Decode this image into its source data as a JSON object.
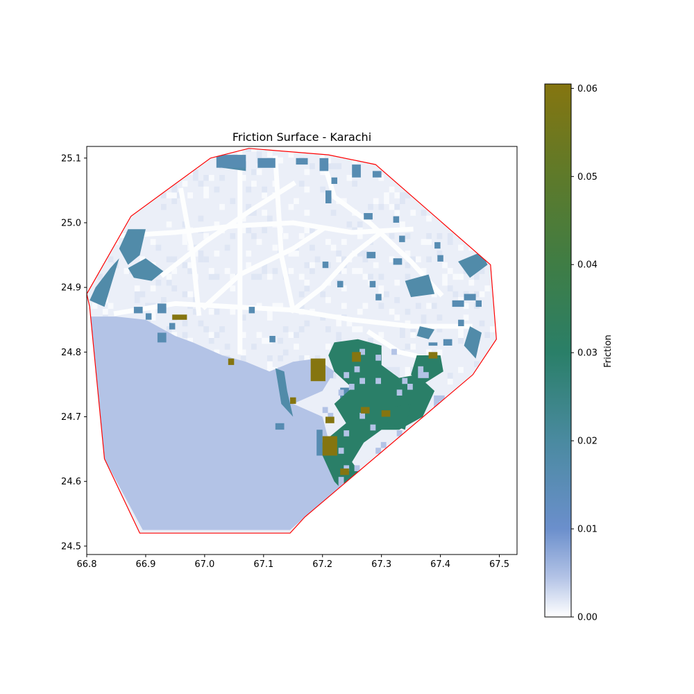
{
  "chart_data": {
    "type": "heatmap",
    "title": "Friction Surface - Karachi",
    "xlabel": "",
    "ylabel": "",
    "xlim": [
      66.8,
      67.53
    ],
    "ylim": [
      24.487,
      25.118
    ],
    "x_ticks": [
      66.8,
      66.9,
      67.0,
      67.1,
      67.2,
      67.3,
      67.4,
      67.5
    ],
    "x_tick_labels": [
      "66.8",
      "66.9",
      "67.0",
      "67.1",
      "67.2",
      "67.3",
      "67.4",
      "67.5"
    ],
    "y_ticks": [
      24.5,
      24.6,
      24.7,
      24.8,
      24.9,
      25.0,
      25.1
    ],
    "y_tick_labels": [
      "24.5",
      "24.6",
      "24.7",
      "24.8",
      "24.9",
      "25.0",
      "25.1"
    ],
    "grid": false,
    "colorbar": {
      "label": "Friction",
      "range": [
        0.0,
        0.0605
      ],
      "ticks": [
        0.0,
        0.01,
        0.02,
        0.03,
        0.04,
        0.05,
        0.06
      ],
      "tick_labels": [
        "0.00",
        "0.01",
        "0.02",
        "0.03",
        "0.04",
        "0.05",
        "0.06"
      ],
      "color_stops": [
        {
          "value": 0.0,
          "color": "#ffffff"
        },
        {
          "value": 0.0045,
          "color": "#b3c3e6"
        },
        {
          "value": 0.01,
          "color": "#6b8fcc"
        },
        {
          "value": 0.02,
          "color": "#4a8aa0"
        },
        {
          "value": 0.03,
          "color": "#2a7f68"
        },
        {
          "value": 0.04,
          "color": "#3f7d45"
        },
        {
          "value": 0.05,
          "color": "#5e7a2a"
        },
        {
          "value": 0.0605,
          "color": "#857510"
        }
      ]
    },
    "boundary": {
      "color": "#ff0000",
      "points": [
        [
          66.8,
          24.89
        ],
        [
          66.875,
          25.01
        ],
        [
          67.01,
          25.1
        ],
        [
          67.075,
          25.115
        ],
        [
          67.21,
          25.105
        ],
        [
          67.29,
          25.09
        ],
        [
          67.485,
          24.935
        ],
        [
          67.495,
          24.82
        ],
        [
          67.455,
          24.765
        ],
        [
          67.17,
          24.545
        ],
        [
          67.145,
          24.52
        ],
        [
          66.89,
          24.52
        ],
        [
          66.83,
          24.635
        ],
        [
          66.805,
          24.87
        ]
      ]
    },
    "regions": {
      "sea": {
        "value": 0.0045,
        "polygon": [
          [
            66.805,
            24.855
          ],
          [
            66.85,
            24.855
          ],
          [
            66.9,
            24.85
          ],
          [
            66.95,
            24.825
          ],
          [
            66.98,
            24.815
          ],
          [
            67.03,
            24.795
          ],
          [
            67.07,
            24.785
          ],
          [
            67.11,
            24.77
          ],
          [
            67.15,
            24.785
          ],
          [
            67.19,
            24.79
          ],
          [
            67.22,
            24.77
          ],
          [
            67.2,
            24.74
          ],
          [
            67.15,
            24.72
          ],
          [
            67.2,
            24.7
          ],
          [
            67.22,
            24.63
          ],
          [
            67.23,
            24.58
          ],
          [
            67.17,
            24.545
          ],
          [
            67.145,
            24.525
          ],
          [
            66.895,
            24.525
          ],
          [
            66.83,
            24.635
          ]
        ]
      },
      "urban": {
        "value": 0.0012
      },
      "roads": {
        "value": 0.0001,
        "lines": [
          [
            [
              66.85,
              24.86
            ],
            [
              66.95,
              24.875
            ],
            [
              67.05,
              24.87
            ],
            [
              67.15,
              24.865
            ],
            [
              67.25,
              24.85
            ],
            [
              67.35,
              24.84
            ],
            [
              67.45,
              24.84
            ]
          ],
          [
            [
              66.86,
              24.98
            ],
            [
              66.95,
              24.985
            ],
            [
              67.05,
              24.995
            ],
            [
              67.15,
              25.0
            ],
            [
              67.25,
              24.985
            ],
            [
              67.35,
              24.99
            ]
          ],
          [
            [
              67.06,
              25.11
            ],
            [
              67.06,
              24.8
            ]
          ],
          [
            [
              66.93,
              24.92
            ],
            [
              67.0,
              24.97
            ],
            [
              67.08,
              25.02
            ],
            [
              67.15,
              25.06
            ]
          ],
          [
            [
              67.0,
              24.87
            ],
            [
              67.06,
              24.92
            ],
            [
              67.15,
              24.96
            ],
            [
              67.2,
              24.99
            ]
          ],
          [
            [
              67.15,
              24.865
            ],
            [
              67.2,
              24.9
            ],
            [
              67.25,
              24.95
            ],
            [
              67.3,
              24.985
            ]
          ],
          [
            [
              67.12,
              25.1
            ],
            [
              67.13,
              24.95
            ],
            [
              67.15,
              24.865
            ]
          ],
          [
            [
              67.2,
              25.1
            ],
            [
              67.22,
              25.04
            ],
            [
              67.28,
              25.0
            ],
            [
              67.35,
              24.94
            ],
            [
              67.4,
              24.89
            ]
          ],
          [
            [
              66.96,
              25.05
            ],
            [
              66.98,
              24.95
            ],
            [
              66.99,
              24.86
            ]
          ],
          [
            [
              67.28,
              24.83
            ],
            [
              67.33,
              24.8
            ],
            [
              67.38,
              24.79
            ]
          ]
        ]
      },
      "moderate_zones": {
        "value": 0.018,
        "polygons": [
          [
            [
              66.805,
              24.88
            ],
            [
              66.815,
              24.9
            ],
            [
              66.84,
              24.93
            ],
            [
              66.855,
              24.945
            ],
            [
              66.83,
              24.87
            ]
          ],
          [
            [
              66.855,
              24.96
            ],
            [
              66.87,
              24.99
            ],
            [
              66.9,
              24.99
            ],
            [
              66.89,
              24.95
            ],
            [
              66.87,
              24.935
            ]
          ],
          [
            [
              66.87,
              24.93
            ],
            [
              66.9,
              24.945
            ],
            [
              66.93,
              24.925
            ],
            [
              66.91,
              24.91
            ],
            [
              66.88,
              24.915
            ]
          ],
          [
            [
              67.03,
              25.1
            ],
            [
              67.07,
              25.095
            ],
            [
              67.07,
              25.08
            ],
            [
              67.03,
              25.085
            ]
          ],
          [
            [
              67.34,
              24.91
            ],
            [
              67.38,
              24.92
            ],
            [
              67.39,
              24.89
            ],
            [
              67.35,
              24.885
            ]
          ],
          [
            [
              67.43,
              24.94
            ],
            [
              67.47,
              24.955
            ],
            [
              67.48,
              24.935
            ],
            [
              67.45,
              24.915
            ]
          ],
          [
            [
              67.12,
              24.775
            ],
            [
              67.13,
              24.72
            ],
            [
              67.15,
              24.7
            ],
            [
              67.14,
              24.74
            ],
            [
              67.135,
              24.77
            ]
          ],
          [
            [
              67.45,
              24.84
            ],
            [
              67.47,
              24.83
            ],
            [
              67.46,
              24.79
            ],
            [
              67.44,
              24.81
            ]
          ],
          [
            [
              67.365,
              24.84
            ],
            [
              67.39,
              24.835
            ],
            [
              67.38,
              24.82
            ],
            [
              67.36,
              24.825
            ]
          ]
        ]
      },
      "high_zones": {
        "value": 0.03,
        "polygons": [
          [
            [
              67.22,
              24.815
            ],
            [
              67.26,
              24.82
            ],
            [
              67.3,
              24.81
            ],
            [
              67.3,
              24.78
            ],
            [
              67.33,
              24.76
            ],
            [
              67.36,
              24.765
            ],
            [
              67.39,
              24.74
            ],
            [
              67.37,
              24.7
            ],
            [
              67.33,
              24.68
            ],
            [
              67.3,
              24.68
            ],
            [
              67.27,
              24.66
            ],
            [
              67.25,
              24.63
            ],
            [
              67.27,
              24.605
            ],
            [
              67.24,
              24.58
            ],
            [
              67.22,
              24.6
            ],
            [
              67.2,
              24.64
            ],
            [
              67.2,
              24.66
            ],
            [
              67.24,
              24.69
            ],
            [
              67.22,
              24.72
            ],
            [
              67.25,
              24.745
            ],
            [
              67.22,
              24.77
            ],
            [
              67.21,
              24.795
            ]
          ],
          [
            [
              67.36,
              24.795
            ],
            [
              67.4,
              24.795
            ],
            [
              67.405,
              24.77
            ],
            [
              67.37,
              24.75
            ],
            [
              67.35,
              24.765
            ]
          ],
          [
            [
              67.32,
              24.715
            ],
            [
              67.35,
              24.72
            ],
            [
              67.34,
              24.68
            ],
            [
              67.31,
              24.69
            ]
          ]
        ]
      },
      "very_high_spots": {
        "value": 0.0605,
        "rects": [
          [
            67.18,
            24.755,
            67.205,
            24.79
          ],
          [
            67.2,
            24.64,
            67.225,
            24.67
          ],
          [
            66.945,
            24.85,
            66.97,
            24.858
          ],
          [
            67.25,
            24.785,
            67.265,
            24.8
          ],
          [
            67.23,
            24.61,
            67.245,
            24.62
          ],
          [
            67.3,
            24.7,
            67.315,
            24.71
          ],
          [
            67.205,
            24.69,
            67.22,
            24.7
          ],
          [
            67.38,
            24.79,
            67.395,
            24.8
          ],
          [
            67.04,
            24.78,
            67.05,
            24.79
          ],
          [
            67.145,
            24.72,
            67.155,
            24.73
          ],
          [
            67.265,
            24.705,
            67.28,
            24.715
          ]
        ]
      },
      "dense_clusters": {
        "value": 0.016,
        "rects": [
          [
            67.02,
            25.085,
            67.07,
            25.105
          ],
          [
            67.09,
            25.085,
            67.12,
            25.1
          ],
          [
            67.155,
            25.09,
            67.175,
            25.1
          ],
          [
            67.195,
            25.08,
            67.21,
            25.1
          ],
          [
            67.25,
            25.07,
            67.265,
            25.09
          ],
          [
            67.215,
            25.06,
            67.225,
            25.07
          ],
          [
            67.205,
            25.03,
            67.215,
            25.05
          ],
          [
            67.285,
            25.07,
            67.3,
            25.08
          ],
          [
            67.33,
            24.97,
            67.34,
            24.98
          ],
          [
            67.275,
            24.945,
            67.29,
            24.955
          ],
          [
            67.32,
            24.935,
            67.335,
            24.945
          ],
          [
            67.28,
            24.9,
            67.29,
            24.91
          ],
          [
            67.29,
            24.88,
            67.3,
            24.89
          ],
          [
            67.39,
            24.96,
            67.4,
            24.97
          ],
          [
            67.395,
            24.94,
            67.405,
            24.95
          ],
          [
            67.43,
            24.84,
            67.44,
            24.85
          ],
          [
            67.44,
            24.88,
            67.46,
            24.89
          ],
          [
            67.42,
            24.87,
            67.44,
            24.88
          ],
          [
            67.46,
            24.87,
            67.47,
            24.88
          ],
          [
            66.92,
            24.86,
            66.935,
            24.875
          ],
          [
            66.88,
            24.86,
            66.895,
            24.87
          ],
          [
            66.9,
            24.85,
            66.91,
            24.86
          ],
          [
            66.94,
            24.835,
            66.95,
            24.845
          ],
          [
            66.92,
            24.815,
            66.935,
            24.83
          ],
          [
            67.075,
            24.86,
            67.085,
            24.87
          ],
          [
            67.11,
            24.815,
            67.12,
            24.825
          ],
          [
            67.19,
            24.64,
            67.2,
            24.68
          ],
          [
            67.38,
            24.81,
            67.395,
            24.815
          ],
          [
            67.405,
            24.81,
            67.42,
            24.82
          ],
          [
            67.355,
            24.715,
            67.365,
            24.725
          ],
          [
            67.23,
            24.72,
            67.245,
            24.745
          ],
          [
            67.12,
            24.68,
            67.135,
            24.69
          ],
          [
            67.2,
            24.93,
            67.21,
            24.94
          ],
          [
            67.225,
            24.9,
            67.235,
            24.91
          ],
          [
            67.32,
            25.0,
            67.33,
            25.01
          ],
          [
            67.27,
            25.005,
            67.285,
            25.015
          ]
        ]
      }
    }
  }
}
